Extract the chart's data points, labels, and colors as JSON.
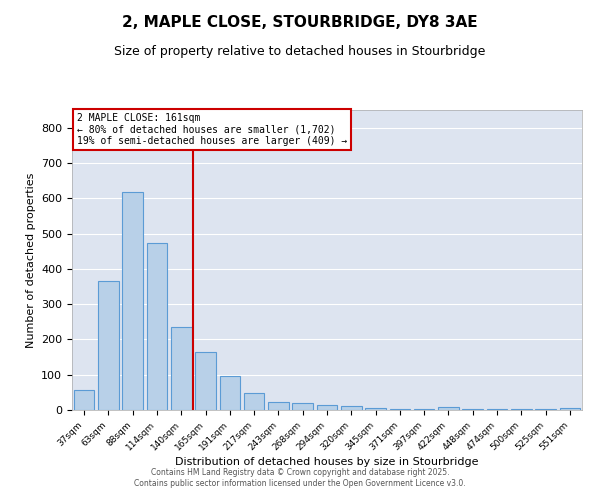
{
  "title": "2, MAPLE CLOSE, STOURBRIDGE, DY8 3AE",
  "subtitle": "Size of property relative to detached houses in Stourbridge",
  "xlabel": "Distribution of detached houses by size in Stourbridge",
  "ylabel": "Number of detached properties",
  "categories": [
    "37sqm",
    "63sqm",
    "88sqm",
    "114sqm",
    "140sqm",
    "165sqm",
    "191sqm",
    "217sqm",
    "243sqm",
    "268sqm",
    "294sqm",
    "320sqm",
    "345sqm",
    "371sqm",
    "397sqm",
    "422sqm",
    "448sqm",
    "474sqm",
    "500sqm",
    "525sqm",
    "551sqm"
  ],
  "values": [
    57,
    365,
    617,
    472,
    235,
    165,
    97,
    47,
    22,
    20,
    15,
    12,
    5,
    3,
    3,
    8,
    2,
    2,
    2,
    2,
    5
  ],
  "bar_color": "#b8d0e8",
  "bar_edge_color": "#5b9bd5",
  "vline_x_index": 4.5,
  "vline_color": "#cc0000",
  "annotation_title": "2 MAPLE CLOSE: 161sqm",
  "annotation_line1": "← 80% of detached houses are smaller (1,702)",
  "annotation_line2": "19% of semi-detached houses are larger (409) →",
  "annotation_box_color": "#cc0000",
  "ylim": [
    0,
    850
  ],
  "yticks": [
    0,
    100,
    200,
    300,
    400,
    500,
    600,
    700,
    800
  ],
  "background_color": "#dde4f0",
  "grid_color": "#ffffff",
  "footer_line1": "Contains HM Land Registry data © Crown copyright and database right 2025.",
  "footer_line2": "Contains public sector information licensed under the Open Government Licence v3.0."
}
